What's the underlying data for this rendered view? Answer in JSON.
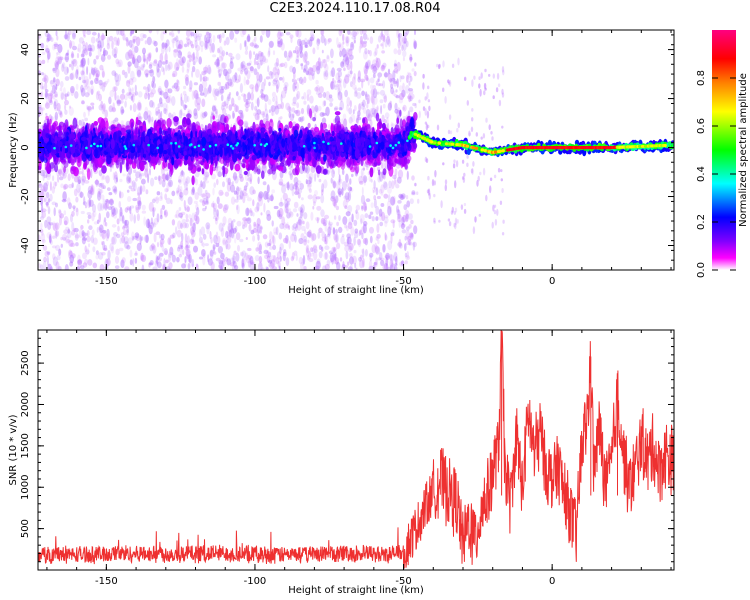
{
  "title": "C2E3.2024.110.17.08.R04",
  "colors": {
    "snr_line": "#ee3030",
    "axis": "#000000",
    "colormap": [
      "#ffffff",
      "#ff00ff",
      "#8000ff",
      "#0000ff",
      "#00ffff",
      "#00ff00",
      "#ffff00",
      "#ff8000",
      "#ff0000",
      "#ff0080"
    ]
  },
  "chart_data": [
    {
      "type": "heatmap",
      "title": "",
      "xlabel": "Height of straight line (km)",
      "ylabel": "Frequency (Hz)",
      "xlim": [
        -173,
        41
      ],
      "ylim": [
        -50,
        48
      ],
      "xticks": [
        -150,
        -100,
        -50,
        0
      ],
      "yticks": [
        -40,
        -20,
        0,
        20,
        40
      ],
      "colorbar": {
        "label": "Normalized spectral amplitude",
        "range": [
          0,
          1
        ],
        "ticks": [
          "0.0",
          "0.2",
          "0.4",
          "0.6",
          "0.8"
        ],
        "tick_values": [
          0.0,
          0.2,
          0.4,
          0.6,
          0.8
        ]
      },
      "description_of_structure": "",
      "band_center_hz": [
        {
          "x": -170,
          "f": 1
        },
        {
          "x": -50,
          "f": 1
        },
        {
          "x": -47,
          "f": 6
        },
        {
          "x": -40,
          "f": 2
        },
        {
          "x": -30,
          "f": 1
        },
        {
          "x": -20,
          "f": -2
        },
        {
          "x": -10,
          "f": 0
        },
        {
          "x": 0,
          "f": 0
        },
        {
          "x": 20,
          "f": 0
        },
        {
          "x": 41,
          "f": 1
        }
      ]
    },
    {
      "type": "line",
      "title": "",
      "xlabel": "Height of straight line (km)",
      "ylabel": "SNR (10 * v/v)",
      "xlim": [
        -173,
        41
      ],
      "ylim": [
        0,
        2900
      ],
      "xticks": [
        -150,
        -100,
        -50,
        0
      ],
      "yticks": [
        500,
        1000,
        1500,
        2000,
        2500
      ],
      "series": [
        {
          "name": "",
          "x": [
            -173,
            -165,
            -155,
            -145,
            -135,
            -125,
            -115,
            -105,
            -95,
            -85,
            -75,
            -65,
            -55,
            -50,
            -47,
            -44,
            -41,
            -38,
            -35,
            -32,
            -30,
            -28,
            -26,
            -24,
            -22,
            -20,
            -18,
            -17,
            -16,
            -14,
            -12,
            -10,
            -8,
            -6,
            -4,
            -2,
            0,
            2,
            4,
            6,
            8,
            10,
            12,
            13,
            14,
            16,
            18,
            20,
            22,
            24,
            26,
            28,
            30,
            32,
            34,
            36,
            38,
            41
          ],
          "y": [
            180,
            190,
            185,
            200,
            195,
            190,
            200,
            195,
            185,
            190,
            200,
            195,
            190,
            220,
            420,
            650,
            900,
            1100,
            950,
            800,
            300,
            600,
            350,
            700,
            900,
            1200,
            1500,
            2850,
            1300,
            800,
            1600,
            1000,
            1900,
            1400,
            1700,
            1200,
            1100,
            1300,
            900,
            700,
            400,
            1500,
            1900,
            2550,
            1200,
            1700,
            1000,
            1300,
            2100,
            1400,
            1000,
            1200,
            1600,
            1300,
            1500,
            1200,
            1400,
            1300
          ]
        }
      ]
    }
  ]
}
